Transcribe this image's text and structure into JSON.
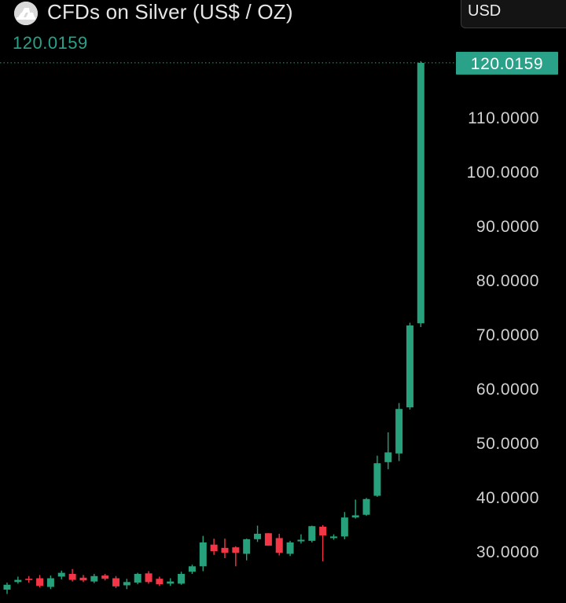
{
  "header": {
    "title": "CFDs on Silver (US$ / OZ)",
    "last_price": "120.0159",
    "currency": "USD",
    "logo_icon": "silver-bars-icon"
  },
  "colors": {
    "background": "#000000",
    "up": "#26a17b",
    "down": "#f23645",
    "axis_text": "#d1d1d1",
    "price_line": "#2aa189"
  },
  "chart_data": {
    "type": "candlestick",
    "title": "CFDs on Silver (US$ / OZ)",
    "xlabel": "",
    "ylabel": "",
    "ylim": [
      19,
      121
    ],
    "y_ticks": [
      30,
      40,
      50,
      60,
      70,
      80,
      90,
      100,
      110
    ],
    "y_tick_labels": [
      "30.0000",
      "40.0000",
      "50.0000",
      "60.0000",
      "70.0000",
      "80.0000",
      "90.0000",
      "100.0000",
      "110.0000"
    ],
    "last_price": 120.0159,
    "last_price_label": "120.0159",
    "grid": false,
    "candles": [
      {
        "o": 22.9,
        "h": 24.2,
        "l": 22.1,
        "c": 23.8
      },
      {
        "o": 24.3,
        "h": 25.3,
        "l": 24.0,
        "c": 24.7
      },
      {
        "o": 24.9,
        "h": 25.4,
        "l": 24.2,
        "c": 24.8
      },
      {
        "o": 25.0,
        "h": 25.6,
        "l": 23.3,
        "c": 23.6
      },
      {
        "o": 23.4,
        "h": 25.5,
        "l": 23.0,
        "c": 25.0
      },
      {
        "o": 25.3,
        "h": 26.4,
        "l": 24.8,
        "c": 26.0
      },
      {
        "o": 25.8,
        "h": 26.7,
        "l": 24.4,
        "c": 24.7
      },
      {
        "o": 25.1,
        "h": 25.6,
        "l": 24.3,
        "c": 24.6
      },
      {
        "o": 24.4,
        "h": 25.8,
        "l": 24.1,
        "c": 25.4
      },
      {
        "o": 25.5,
        "h": 25.8,
        "l": 24.6,
        "c": 24.9
      },
      {
        "o": 25.0,
        "h": 25.4,
        "l": 23.2,
        "c": 23.5
      },
      {
        "o": 23.7,
        "h": 24.9,
        "l": 23.0,
        "c": 24.3
      },
      {
        "o": 24.2,
        "h": 26.0,
        "l": 23.9,
        "c": 25.8
      },
      {
        "o": 25.9,
        "h": 26.3,
        "l": 24.0,
        "c": 24.3
      },
      {
        "o": 24.9,
        "h": 25.3,
        "l": 23.6,
        "c": 23.9
      },
      {
        "o": 24.0,
        "h": 25.0,
        "l": 23.6,
        "c": 24.4
      },
      {
        "o": 24.0,
        "h": 26.2,
        "l": 23.8,
        "c": 25.8
      },
      {
        "o": 26.2,
        "h": 27.5,
        "l": 25.8,
        "c": 27.2
      },
      {
        "o": 27.2,
        "h": 32.8,
        "l": 26.3,
        "c": 31.6
      },
      {
        "o": 31.2,
        "h": 32.3,
        "l": 29.3,
        "c": 30.0
      },
      {
        "o": 30.6,
        "h": 32.3,
        "l": 28.7,
        "c": 29.7
      },
      {
        "o": 30.7,
        "h": 30.9,
        "l": 27.2,
        "c": 29.7
      },
      {
        "o": 29.5,
        "h": 32.3,
        "l": 28.3,
        "c": 32.2
      },
      {
        "o": 32.2,
        "h": 34.7,
        "l": 31.7,
        "c": 33.2
      },
      {
        "o": 33.3,
        "h": 33.3,
        "l": 31.0,
        "c": 31.0
      },
      {
        "o": 32.4,
        "h": 33.2,
        "l": 29.2,
        "c": 29.7
      },
      {
        "o": 29.5,
        "h": 31.9,
        "l": 29.1,
        "c": 31.6
      },
      {
        "o": 31.8,
        "h": 33.1,
        "l": 31.4,
        "c": 32.1
      },
      {
        "o": 31.9,
        "h": 34.7,
        "l": 31.6,
        "c": 34.6
      },
      {
        "o": 34.5,
        "h": 34.8,
        "l": 28.1,
        "c": 32.9
      },
      {
        "o": 32.4,
        "h": 33.1,
        "l": 32.1,
        "c": 32.7
      },
      {
        "o": 32.7,
        "h": 37.2,
        "l": 32.2,
        "c": 36.2
      },
      {
        "o": 36.2,
        "h": 39.5,
        "l": 36.0,
        "c": 36.6
      },
      {
        "o": 36.7,
        "h": 39.8,
        "l": 36.5,
        "c": 39.6
      },
      {
        "o": 40.2,
        "h": 47.6,
        "l": 40.0,
        "c": 46.2
      },
      {
        "o": 46.4,
        "h": 51.9,
        "l": 45.1,
        "c": 48.2
      },
      {
        "o": 48.0,
        "h": 57.3,
        "l": 46.6,
        "c": 56.2
      },
      {
        "o": 56.5,
        "h": 72.1,
        "l": 56.1,
        "c": 71.6
      },
      {
        "o": 72.0,
        "h": 120.3,
        "l": 71.3,
        "c": 120.0
      }
    ]
  }
}
